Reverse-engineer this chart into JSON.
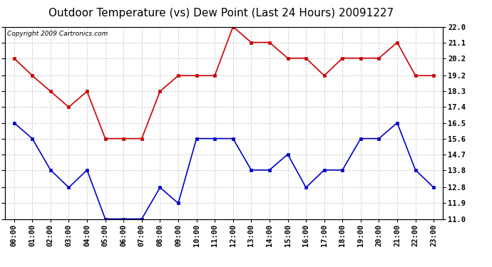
{
  "title": "Outdoor Temperature (vs) Dew Point (Last 24 Hours) 20091227",
  "copyright_text": "Copyright 2009 Cartronics.com",
  "x_labels": [
    "00:00",
    "01:00",
    "02:00",
    "03:00",
    "04:00",
    "05:00",
    "06:00",
    "07:00",
    "08:00",
    "09:00",
    "10:00",
    "11:00",
    "12:00",
    "13:00",
    "14:00",
    "15:00",
    "16:00",
    "17:00",
    "18:00",
    "19:00",
    "20:00",
    "21:00",
    "22:00",
    "23:00"
  ],
  "temp_data": [
    20.2,
    19.2,
    18.3,
    17.4,
    18.3,
    15.6,
    15.6,
    15.6,
    18.3,
    19.2,
    19.2,
    19.2,
    22.0,
    21.1,
    21.1,
    20.2,
    20.2,
    19.2,
    20.2,
    20.2,
    20.2,
    21.1,
    19.2,
    19.2
  ],
  "dew_data": [
    16.5,
    15.6,
    13.8,
    12.8,
    13.8,
    11.0,
    11.0,
    11.0,
    12.8,
    11.9,
    15.6,
    15.6,
    15.6,
    13.8,
    13.8,
    14.7,
    12.8,
    13.8,
    13.8,
    15.6,
    15.6,
    16.5,
    13.8,
    12.8
  ],
  "temp_color": "#cc0000",
  "dew_color": "#0000cc",
  "ylim_min": 11.0,
  "ylim_max": 22.0,
  "yticks": [
    11.0,
    11.9,
    12.8,
    13.8,
    14.7,
    15.6,
    16.5,
    17.4,
    18.3,
    19.2,
    20.2,
    21.1,
    22.0
  ],
  "ytick_labels": [
    "11.0",
    "11.9",
    "12.8",
    "13.8",
    "14.7",
    "15.6",
    "16.5",
    "17.4",
    "18.3",
    "19.2",
    "20.2",
    "21.1",
    "22.0"
  ],
  "background_color": "#ffffff",
  "grid_color": "#cccccc",
  "title_fontsize": 11,
  "copyright_fontsize": 6.5,
  "tick_fontsize": 7.5,
  "marker_style": "s",
  "marker_size": 3,
  "line_width": 1.2
}
